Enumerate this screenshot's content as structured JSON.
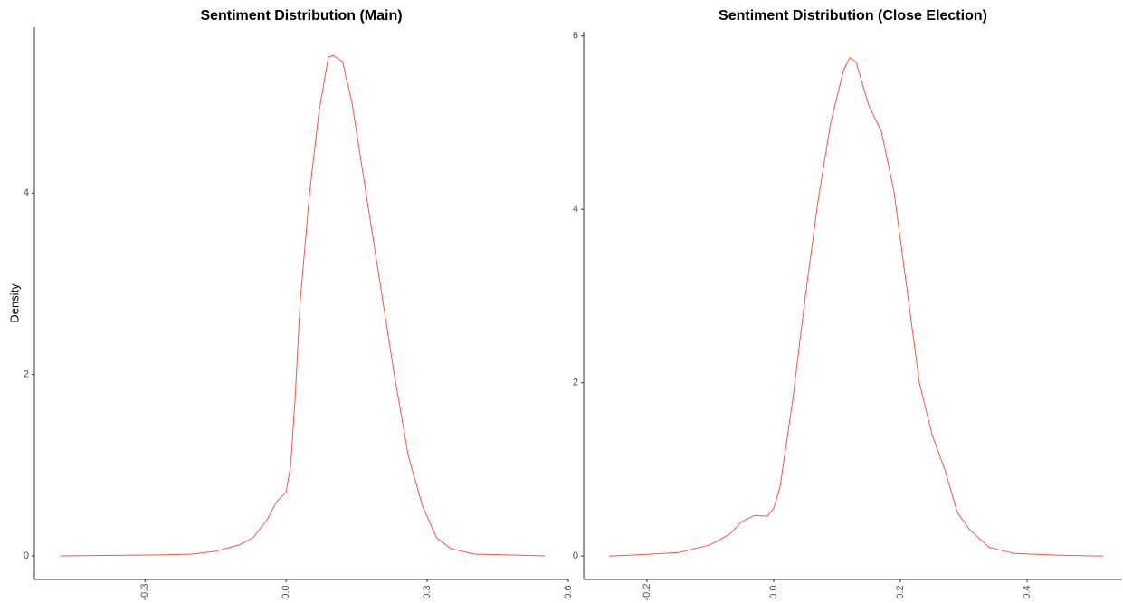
{
  "chart_data": [
    {
      "type": "line",
      "title": "Sentiment Distribution (Main)",
      "ylabel": "Density",
      "color": "#f0584a",
      "x": [
        -0.48,
        -0.28,
        -0.2,
        -0.15,
        -0.1,
        -0.07,
        -0.04,
        -0.02,
        0.0,
        0.01,
        0.02,
        0.03,
        0.05,
        0.07,
        0.09,
        0.1,
        0.12,
        0.14,
        0.17,
        0.2,
        0.23,
        0.26,
        0.29,
        0.32,
        0.35,
        0.4,
        0.48,
        0.55
      ],
      "values": [
        0,
        0.01,
        0.02,
        0.05,
        0.12,
        0.2,
        0.4,
        0.6,
        0.7,
        1.0,
        1.8,
        2.8,
        4.0,
        4.9,
        5.5,
        5.52,
        5.45,
        5.0,
        4.0,
        3.0,
        2.0,
        1.1,
        0.55,
        0.2,
        0.08,
        0.02,
        0.01,
        0
      ],
      "xlim": [
        -0.535,
        0.6
      ],
      "xticks": [
        -0.3,
        {
          "value": 0,
          "label": "0.0"
        },
        0.3,
        0.6
      ],
      "ylim": [
        -0.26,
        5.83
      ],
      "yticks": [
        0,
        2,
        4
      ]
    },
    {
      "type": "line",
      "title": "Sentiment Distribution (Close Election)",
      "color": "#f0584a",
      "x": [
        -0.26,
        -0.2,
        -0.15,
        -0.1,
        -0.07,
        -0.05,
        -0.03,
        -0.01,
        0.0,
        0.01,
        0.03,
        0.05,
        0.07,
        0.09,
        0.11,
        0.12,
        0.13,
        0.15,
        0.17,
        0.19,
        0.21,
        0.23,
        0.25,
        0.27,
        0.29,
        0.31,
        0.34,
        0.38,
        0.45,
        0.52
      ],
      "values": [
        0,
        0.02,
        0.04,
        0.13,
        0.25,
        0.4,
        0.47,
        0.46,
        0.55,
        0.8,
        1.8,
        3.0,
        4.1,
        5.0,
        5.6,
        5.75,
        5.7,
        5.2,
        4.9,
        4.2,
        3.1,
        2.0,
        1.4,
        1.0,
        0.5,
        0.3,
        0.1,
        0.03,
        0.01,
        0
      ],
      "xlim": [
        -0.3,
        0.55
      ],
      "xticks": [
        -0.2,
        {
          "value": 0,
          "label": "0.0"
        },
        0.2,
        0.4
      ],
      "ylim": [
        -0.27,
        6.05
      ],
      "yticks": [
        0,
        2,
        4,
        6
      ]
    }
  ]
}
